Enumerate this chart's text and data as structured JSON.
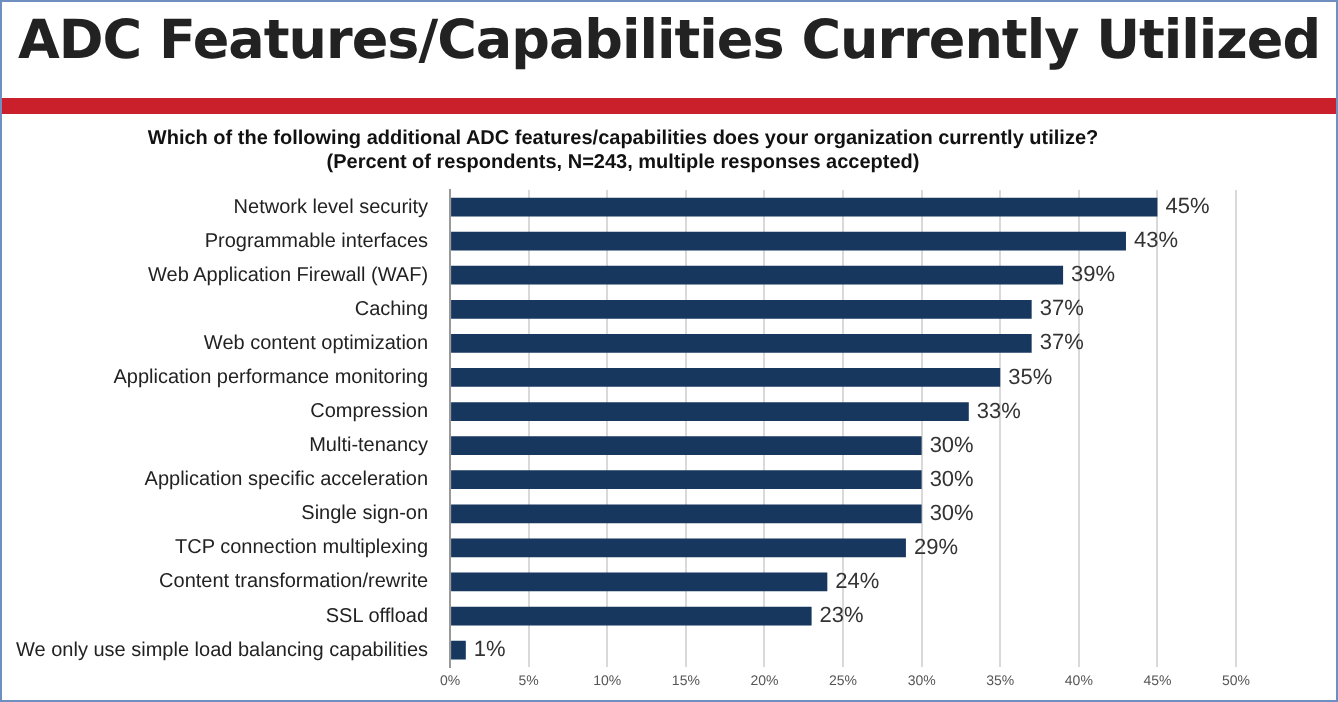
{
  "chart_data": {
    "type": "bar",
    "orientation": "horizontal",
    "title": "ADC Features/Capabilities Currently Utilized",
    "subtitle": "Which of the following additional ADC features/capabilities does your organization currently utilize?\n(Percent of respondents, N=243, multiple responses accepted)",
    "categories": [
      "Network level security",
      "Programmable interfaces",
      "Web Application Firewall (WAF)",
      "Caching",
      "Web content optimization",
      "Application performance monitoring",
      "Compression",
      "Multi-tenancy",
      "Application specific acceleration",
      "Single sign-on",
      "TCP connection multiplexing",
      "Content transformation/rewrite",
      "SSL offload",
      "We only use simple load balancing capabilities"
    ],
    "values": [
      45,
      43,
      39,
      37,
      37,
      35,
      33,
      30,
      30,
      30,
      29,
      24,
      23,
      1
    ],
    "value_labels": [
      "45%",
      "43%",
      "39%",
      "37%",
      "37%",
      "35%",
      "33%",
      "30%",
      "30%",
      "30%",
      "29%",
      "24%",
      "23%",
      "1%"
    ],
    "color": "#17375e",
    "xlim": [
      0,
      50
    ],
    "xticks": [
      {
        "value": 0,
        "label": "0%"
      },
      {
        "value": 5,
        "label": "5%"
      },
      {
        "value": 10,
        "label": "10%"
      },
      {
        "value": 15,
        "label": "15%"
      },
      {
        "value": 20,
        "label": "20%"
      },
      {
        "value": 25,
        "label": "25%"
      },
      {
        "value": 30,
        "label": "30%"
      },
      {
        "value": 35,
        "label": "35%"
      },
      {
        "value": 40,
        "label": "40%"
      },
      {
        "value": 45,
        "label": "45%"
      },
      {
        "value": 50,
        "label": "50%"
      }
    ],
    "grid": "x"
  }
}
